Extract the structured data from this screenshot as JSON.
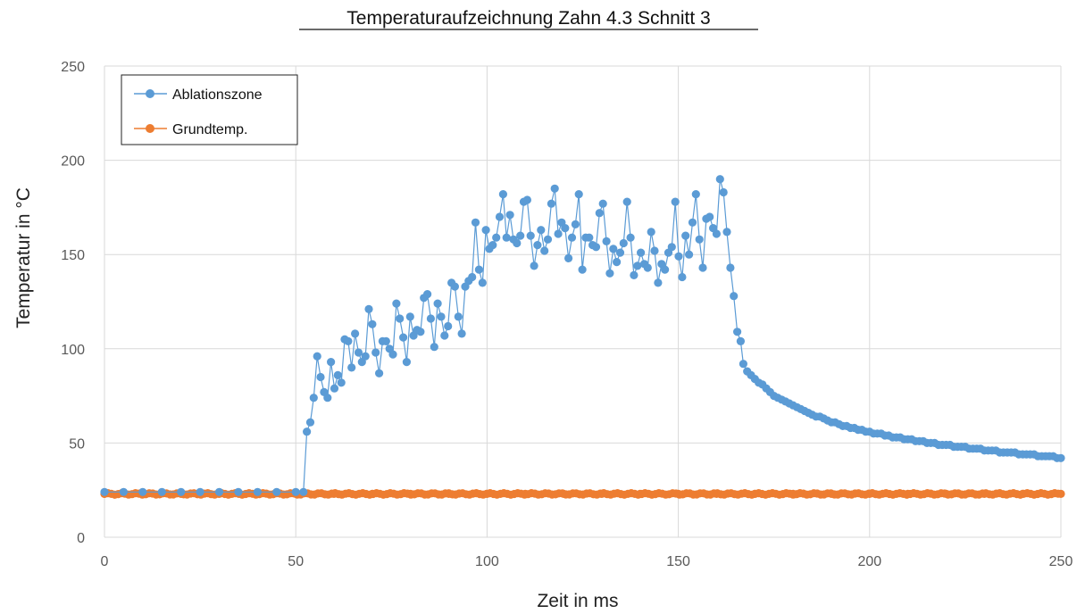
{
  "chart_data": {
    "type": "scatter",
    "title": "Temperaturaufzeichnung  Zahn 4.3 Schnitt 3",
    "xlabel": "Zeit in ms",
    "ylabel": "Temperatur  in °C",
    "xlim": [
      0,
      250
    ],
    "ylim": [
      0,
      250
    ],
    "x_ticks": [
      0,
      50,
      100,
      150,
      200,
      250
    ],
    "y_ticks": [
      0,
      50,
      100,
      150,
      200,
      250
    ],
    "grid": true,
    "legend_position": "top-left",
    "series": [
      {
        "name": "Ablationszone",
        "color": "#5B9BD5",
        "marker": "circle",
        "line": true,
        "points": [
          [
            0,
            24
          ],
          [
            5,
            24
          ],
          [
            10,
            24
          ],
          [
            15,
            24
          ],
          [
            20,
            24
          ],
          [
            25,
            24
          ],
          [
            30,
            24
          ],
          [
            35,
            24
          ],
          [
            40,
            24
          ],
          [
            45,
            24
          ],
          [
            50,
            24
          ],
          [
            52,
            24
          ],
          [
            52.9,
            56
          ],
          [
            53.8,
            61
          ],
          [
            54.7,
            74
          ],
          [
            55.6,
            96
          ],
          [
            56.5,
            85
          ],
          [
            57.4,
            77
          ],
          [
            58.3,
            74
          ],
          [
            59.2,
            93
          ],
          [
            60.1,
            79
          ],
          [
            61,
            86
          ],
          [
            61.9,
            82
          ],
          [
            62.8,
            105
          ],
          [
            63.7,
            104
          ],
          [
            64.6,
            90
          ],
          [
            65.5,
            108
          ],
          [
            66.4,
            98
          ],
          [
            67.3,
            93
          ],
          [
            68.2,
            96
          ],
          [
            69.1,
            121
          ],
          [
            70,
            113
          ],
          [
            70.9,
            98
          ],
          [
            71.8,
            87
          ],
          [
            72.7,
            104
          ],
          [
            73.6,
            104
          ],
          [
            74.5,
            100
          ],
          [
            75.4,
            97
          ],
          [
            76.3,
            124
          ],
          [
            77.2,
            116
          ],
          [
            78.1,
            106
          ],
          [
            79,
            93
          ],
          [
            79.9,
            117
          ],
          [
            80.8,
            107
          ],
          [
            81.7,
            110
          ],
          [
            82.6,
            109
          ],
          [
            83.5,
            127
          ],
          [
            84.4,
            129
          ],
          [
            85.3,
            116
          ],
          [
            86.2,
            101
          ],
          [
            87.1,
            124
          ],
          [
            88,
            117
          ],
          [
            88.9,
            107
          ],
          [
            89.8,
            112
          ],
          [
            90.7,
            135
          ],
          [
            91.6,
            133
          ],
          [
            92.5,
            117
          ],
          [
            93.4,
            108
          ],
          [
            94.3,
            133
          ],
          [
            95.2,
            136
          ],
          [
            96.1,
            138
          ],
          [
            97,
            167
          ],
          [
            97.9,
            142
          ],
          [
            98.8,
            135
          ],
          [
            99.7,
            163
          ],
          [
            100.6,
            153
          ],
          [
            101.5,
            155
          ],
          [
            102.4,
            159
          ],
          [
            103.3,
            170
          ],
          [
            104.2,
            182
          ],
          [
            105.1,
            159
          ],
          [
            106,
            171
          ],
          [
            106.9,
            158
          ],
          [
            107.8,
            156
          ],
          [
            108.7,
            160
          ],
          [
            109.6,
            178
          ],
          [
            110.5,
            179
          ],
          [
            111.4,
            160
          ],
          [
            112.3,
            144
          ],
          [
            113.2,
            155
          ],
          [
            114.1,
            163
          ],
          [
            115,
            152
          ],
          [
            115.9,
            158
          ],
          [
            116.8,
            177
          ],
          [
            117.7,
            185
          ],
          [
            118.6,
            161
          ],
          [
            119.5,
            167
          ],
          [
            120.4,
            164
          ],
          [
            121.3,
            148
          ],
          [
            122.2,
            159
          ],
          [
            123.1,
            166
          ],
          [
            124,
            182
          ],
          [
            124.9,
            142
          ],
          [
            125.8,
            159
          ],
          [
            126.7,
            159
          ],
          [
            127.6,
            155
          ],
          [
            128.5,
            154
          ],
          [
            129.4,
            172
          ],
          [
            130.3,
            177
          ],
          [
            131.2,
            157
          ],
          [
            132.1,
            140
          ],
          [
            133,
            153
          ],
          [
            133.9,
            146
          ],
          [
            134.8,
            151
          ],
          [
            135.7,
            156
          ],
          [
            136.6,
            178
          ],
          [
            137.5,
            159
          ],
          [
            138.4,
            139
          ],
          [
            139.3,
            144
          ],
          [
            140.2,
            151
          ],
          [
            141.1,
            145
          ],
          [
            142,
            143
          ],
          [
            142.9,
            162
          ],
          [
            143.8,
            152
          ],
          [
            144.7,
            135
          ],
          [
            145.6,
            145
          ],
          [
            146.5,
            142
          ],
          [
            147.4,
            151
          ],
          [
            148.3,
            154
          ],
          [
            149.2,
            178
          ],
          [
            150.1,
            149
          ],
          [
            151,
            138
          ],
          [
            151.9,
            160
          ],
          [
            152.8,
            150
          ],
          [
            153.7,
            167
          ],
          [
            154.6,
            182
          ],
          [
            155.5,
            158
          ],
          [
            156.4,
            143
          ],
          [
            157.3,
            169
          ],
          [
            158.2,
            170
          ],
          [
            159.1,
            164
          ],
          [
            160,
            161
          ],
          [
            160.9,
            190
          ],
          [
            161.8,
            183
          ],
          [
            162.7,
            162
          ],
          [
            163.6,
            143
          ],
          [
            164.5,
            128
          ],
          [
            165.4,
            109
          ],
          [
            166.3,
            104
          ],
          [
            167,
            92
          ],
          [
            168,
            88
          ],
          [
            169,
            86
          ],
          [
            170,
            84
          ],
          [
            171,
            82
          ],
          [
            172,
            81
          ],
          [
            173,
            79
          ],
          [
            174,
            77
          ],
          [
            175,
            75
          ],
          [
            176,
            74
          ],
          [
            177,
            73
          ],
          [
            178,
            72
          ],
          [
            179,
            71
          ],
          [
            180,
            70
          ],
          [
            181,
            69
          ],
          [
            182,
            68
          ],
          [
            183,
            67
          ],
          [
            184,
            66
          ],
          [
            185,
            65
          ],
          [
            186,
            64
          ],
          [
            187,
            64
          ],
          [
            188,
            63
          ],
          [
            189,
            62
          ],
          [
            190,
            61
          ],
          [
            191,
            61
          ],
          [
            192,
            60
          ],
          [
            193,
            59
          ],
          [
            194,
            59
          ],
          [
            195,
            58
          ],
          [
            196,
            58
          ],
          [
            197,
            57
          ],
          [
            198,
            57
          ],
          [
            199,
            56
          ],
          [
            200,
            56
          ],
          [
            201,
            55
          ],
          [
            202,
            55
          ],
          [
            203,
            55
          ],
          [
            204,
            54
          ],
          [
            205,
            54
          ],
          [
            206,
            53
          ],
          [
            207,
            53
          ],
          [
            208,
            53
          ],
          [
            209,
            52
          ],
          [
            210,
            52
          ],
          [
            211,
            52
          ],
          [
            212,
            51
          ],
          [
            213,
            51
          ],
          [
            214,
            51
          ],
          [
            215,
            50
          ],
          [
            216,
            50
          ],
          [
            217,
            50
          ],
          [
            218,
            49
          ],
          [
            219,
            49
          ],
          [
            220,
            49
          ],
          [
            221,
            49
          ],
          [
            222,
            48
          ],
          [
            223,
            48
          ],
          [
            224,
            48
          ],
          [
            225,
            48
          ],
          [
            226,
            47
          ],
          [
            227,
            47
          ],
          [
            228,
            47
          ],
          [
            229,
            47
          ],
          [
            230,
            46
          ],
          [
            231,
            46
          ],
          [
            232,
            46
          ],
          [
            233,
            46
          ],
          [
            234,
            45
          ],
          [
            235,
            45
          ],
          [
            236,
            45
          ],
          [
            237,
            45
          ],
          [
            238,
            45
          ],
          [
            239,
            44
          ],
          [
            240,
            44
          ],
          [
            241,
            44
          ],
          [
            242,
            44
          ],
          [
            243,
            44
          ],
          [
            244,
            43
          ],
          [
            245,
            43
          ],
          [
            246,
            43
          ],
          [
            247,
            43
          ],
          [
            248,
            43
          ],
          [
            249,
            42
          ],
          [
            250,
            42
          ]
        ]
      },
      {
        "name": "Grundtemp.",
        "color": "#ED7D31",
        "marker": "circle",
        "line": true,
        "points": [
          [
            0,
            23
          ],
          [
            10,
            23
          ],
          [
            20,
            23
          ],
          [
            30,
            23
          ],
          [
            40,
            23
          ],
          [
            50,
            23
          ],
          [
            60,
            23
          ],
          [
            70,
            23
          ],
          [
            80,
            23
          ],
          [
            90,
            23
          ],
          [
            100,
            23
          ],
          [
            110,
            23
          ],
          [
            120,
            23
          ],
          [
            130,
            23
          ],
          [
            140,
            23
          ],
          [
            150,
            23
          ],
          [
            160,
            23
          ],
          [
            170,
            23
          ],
          [
            180,
            23
          ],
          [
            190,
            23
          ],
          [
            200,
            23
          ],
          [
            210,
            23
          ],
          [
            220,
            23
          ],
          [
            230,
            23
          ],
          [
            240,
            23
          ],
          [
            250,
            23
          ]
        ]
      }
    ]
  }
}
